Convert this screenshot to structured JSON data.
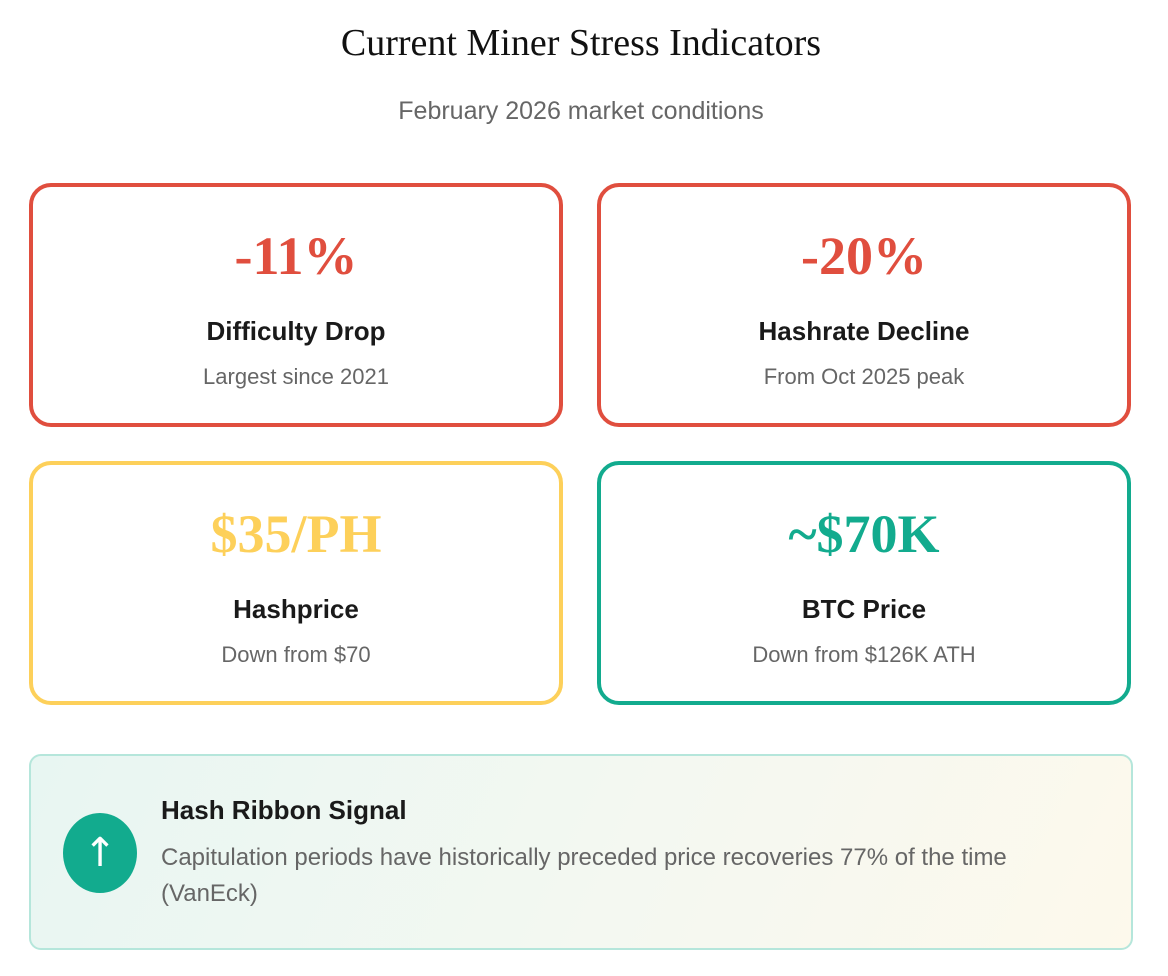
{
  "header": {
    "title": "Current Miner Stress Indicators",
    "subtitle": "February 2026 market conditions"
  },
  "cards": [
    {
      "value": "-11%",
      "label": "Difficulty Drop",
      "note": "Largest since 2021",
      "color": "#e04e3e"
    },
    {
      "value": "-20%",
      "label": "Hashrate Decline",
      "note": "From Oct 2025 peak",
      "color": "#e04e3e"
    },
    {
      "value": "$35/PH",
      "label": "Hashprice",
      "note": "Down from $70",
      "color": "#fdd05a"
    },
    {
      "value": "~$70K",
      "label": "BTC Price",
      "note": "Down from $126K ATH",
      "color": "#12ab8e"
    }
  ],
  "signal": {
    "icon": "arrow-up-icon",
    "icon_glyph": "↑",
    "title": "Hash Ribbon Signal",
    "text": "Capitulation periods have historically preceded price recoveries 77% of the time (VanEck)"
  }
}
